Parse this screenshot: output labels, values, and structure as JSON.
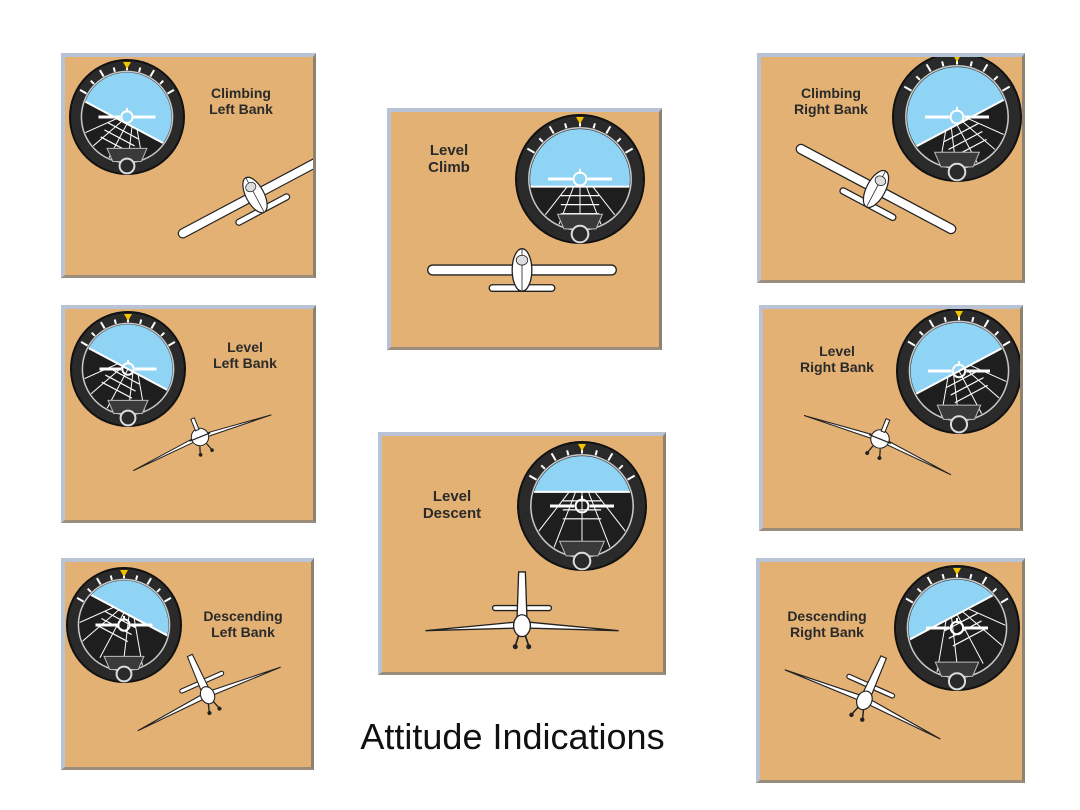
{
  "caption": "Attitude Indications",
  "colors": {
    "panel": "#e3b173",
    "sky": "#8fd4f5",
    "ground": "#1e1e1e",
    "bezel": "#2a2a2a"
  },
  "panels": [
    {
      "id": "climbing-left-bank",
      "line1": "Climbing",
      "line2": "Left Bank",
      "pitch": "climb",
      "bank": "left"
    },
    {
      "id": "level-left-bank",
      "line1": "Level",
      "line2": "Left Bank",
      "pitch": "level",
      "bank": "left"
    },
    {
      "id": "descending-left-bank",
      "line1": "Descending",
      "line2": "Left Bank",
      "pitch": "descent",
      "bank": "left"
    },
    {
      "id": "level-climb",
      "line1": "Level",
      "line2": "Climb",
      "pitch": "climb",
      "bank": "level"
    },
    {
      "id": "level-descent",
      "line1": "Level",
      "line2": "Descent",
      "pitch": "descent",
      "bank": "level"
    },
    {
      "id": "climbing-right-bank",
      "line1": "Climbing",
      "line2": "Right Bank",
      "pitch": "climb",
      "bank": "right"
    },
    {
      "id": "level-right-bank",
      "line1": "Level",
      "line2": "Right Bank",
      "pitch": "level",
      "bank": "right"
    },
    {
      "id": "descending-right-bank",
      "line1": "Descending",
      "line2": "Right Bank",
      "pitch": "descent",
      "bank": "right"
    }
  ]
}
